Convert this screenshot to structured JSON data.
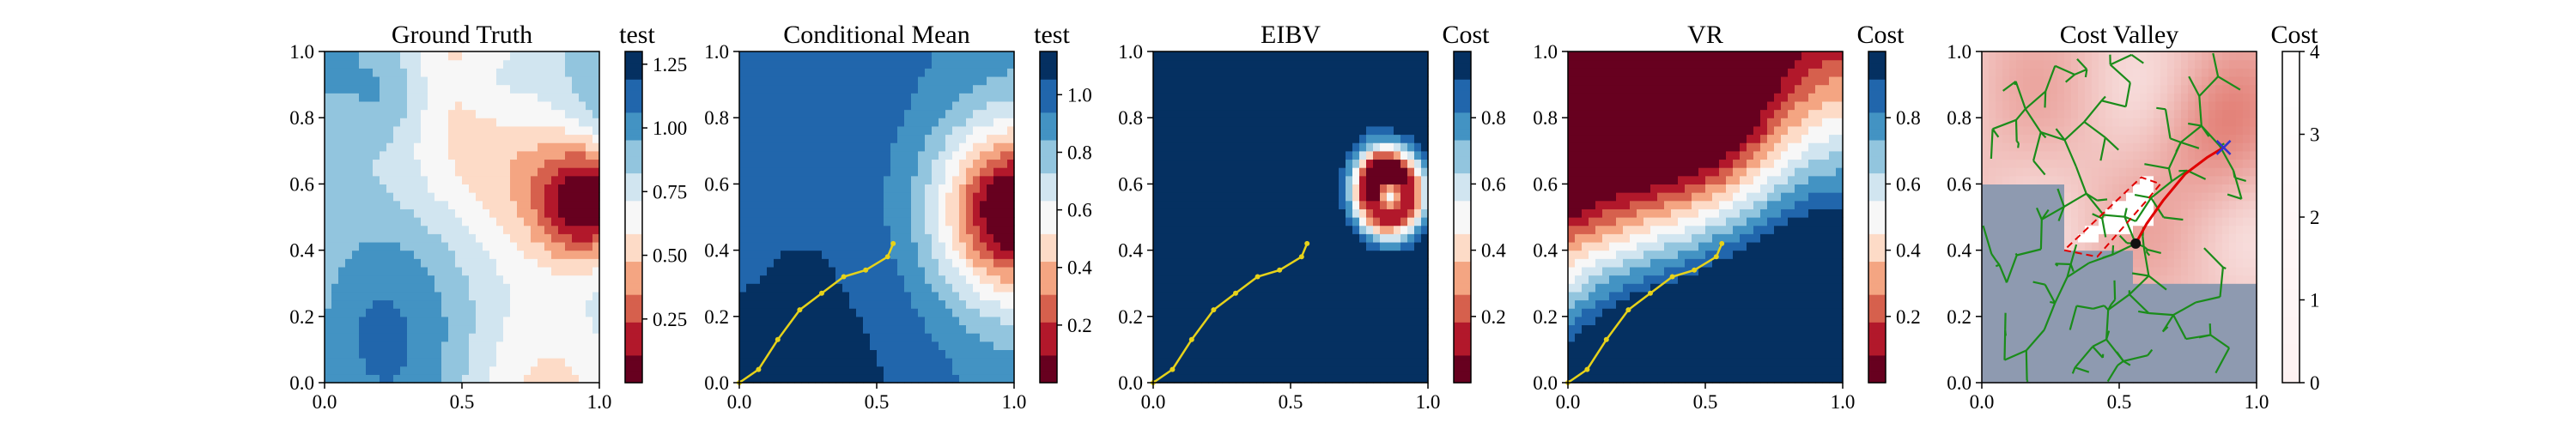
{
  "figure": {
    "panels": [
      {
        "title": "Ground Truth",
        "cbar_title": "test",
        "field": "truth",
        "path": false,
        "cmap": "RdBu",
        "cbar_ticks": [
          "0.25",
          "0.50",
          "0.75",
          "1.00",
          "1.25"
        ],
        "cbar_tick_values": [
          0.25,
          0.5,
          0.75,
          1.0,
          1.25
        ],
        "cbar_range": [
          0.0,
          1.3
        ]
      },
      {
        "title": "Conditional Mean",
        "cbar_title": "test",
        "field": "mean",
        "path": true,
        "cmap": "RdBu",
        "cbar_ticks": [
          "0.2",
          "0.4",
          "0.6",
          "0.8",
          "1.0"
        ],
        "cbar_tick_values": [
          0.2,
          0.4,
          0.6,
          0.8,
          1.0
        ],
        "cbar_range": [
          0.0,
          1.15
        ]
      },
      {
        "title": "EIBV",
        "cbar_title": "Cost",
        "field": "eibv",
        "path": true,
        "cmap": "RdBu",
        "cbar_ticks": [
          "0.2",
          "0.4",
          "0.6",
          "0.8"
        ],
        "cbar_tick_values": [
          0.2,
          0.4,
          0.6,
          0.8
        ],
        "cbar_range": [
          0.0,
          1.0
        ]
      },
      {
        "title": "VR",
        "cbar_title": "Cost",
        "field": "vr",
        "path": true,
        "cmap": "RdBu",
        "cbar_ticks": [
          "0.2",
          "0.4",
          "0.6",
          "0.8"
        ],
        "cbar_tick_values": [
          0.2,
          0.4,
          0.6,
          0.8
        ],
        "cbar_range": [
          0.0,
          1.0
        ]
      },
      {
        "title": "Cost Valley",
        "cbar_title": "Cost",
        "field": "valley",
        "path": false,
        "cmap": "Reds",
        "cbar_ticks": [
          "0",
          "1",
          "2",
          "3",
          "4"
        ],
        "cbar_tick_values": [
          0,
          1,
          2,
          3,
          4
        ],
        "cbar_range": [
          0,
          4
        ]
      }
    ],
    "x_ticks": [
      "0.0",
      "0.5",
      "1.0"
    ],
    "x_tick_values": [
      0.0,
      0.5,
      1.0
    ],
    "y_ticks": [
      "0.0",
      "0.2",
      "0.4",
      "0.6",
      "0.8",
      "1.0"
    ],
    "y_tick_values": [
      0.0,
      0.2,
      0.4,
      0.6,
      0.8,
      1.0
    ]
  },
  "colors": {
    "path_color": "#e6d21a",
    "tree_color": "#1a8c1a",
    "route_color": "#e00000",
    "target_color": "#3333cc",
    "rdbu": [
      "#67001f",
      "#b2182b",
      "#d6604d",
      "#f4a582",
      "#fddbc7",
      "#f7f7f7",
      "#d1e5f0",
      "#92c5de",
      "#4393c3",
      "#2166ac",
      "#053061"
    ]
  },
  "chart_data": [
    {
      "type": "heatmap",
      "title": "Ground Truth",
      "colorbar_label": "test",
      "xlim": [
        0,
        1
      ],
      "ylim": [
        0,
        1
      ],
      "colorbar_range": [
        0.0,
        1.3
      ],
      "features": "Mostly high values (~0.75–1.25); low-value hotspot near (0.95, 0.55)"
    },
    {
      "type": "heatmap",
      "title": "Conditional Mean",
      "colorbar_label": "test",
      "xlim": [
        0,
        1
      ],
      "ylim": [
        0,
        1
      ],
      "colorbar_range": [
        0.0,
        1.15
      ],
      "features": "Smooth high field with a low hotspot near (0.98, 0.52)",
      "path": {
        "x": [
          0.0,
          0.07,
          0.14,
          0.22,
          0.3,
          0.38,
          0.46,
          0.54,
          0.56
        ],
        "y": [
          0.0,
          0.04,
          0.13,
          0.22,
          0.27,
          0.32,
          0.34,
          0.38,
          0.42
        ]
      }
    },
    {
      "type": "heatmap",
      "title": "EIBV",
      "colorbar_label": "Cost",
      "xlim": [
        0,
        1
      ],
      "ylim": [
        0,
        1
      ],
      "colorbar_range": [
        0.0,
        1.0
      ],
      "features": "High everywhere except a ring of lower cost around (0.8, 0.6)",
      "path": {
        "x": [
          0.0,
          0.07,
          0.14,
          0.22,
          0.3,
          0.38,
          0.46,
          0.54,
          0.56
        ],
        "y": [
          0.0,
          0.04,
          0.13,
          0.22,
          0.27,
          0.32,
          0.34,
          0.38,
          0.42
        ]
      }
    },
    {
      "type": "heatmap",
      "title": "VR",
      "colorbar_label": "Cost",
      "xlim": [
        0,
        1
      ],
      "ylim": [
        0,
        1
      ],
      "colorbar_range": [
        0.0,
        1.0
      ],
      "features": "Low cost band along the top, S-shaped transition, high cost at bottom-left",
      "path": {
        "x": [
          0.0,
          0.07,
          0.14,
          0.22,
          0.3,
          0.38,
          0.46,
          0.54,
          0.56
        ],
        "y": [
          0.0,
          0.04,
          0.13,
          0.22,
          0.27,
          0.32,
          0.34,
          0.38,
          0.42
        ]
      }
    },
    {
      "type": "heatmap",
      "title": "Cost Valley",
      "colorbar_label": "Cost",
      "xlim": [
        0,
        1
      ],
      "ylim": [
        0,
        1
      ],
      "colorbar_range": [
        0,
        4
      ],
      "features": "Pink cost field with a gray obstacle region at lower-left, green RRT tree, red planned route, dashed red budget polygon, white low-cost triangle, blue target cross near (0.88, 0.71), current position near (0.56, 0.42)",
      "route": {
        "x": [
          0.56,
          0.6,
          0.66,
          0.74,
          0.82,
          0.88
        ],
        "y": [
          0.42,
          0.48,
          0.55,
          0.63,
          0.68,
          0.71
        ]
      },
      "target": {
        "x": 0.88,
        "y": 0.71
      },
      "current": {
        "x": 0.56,
        "y": 0.42
      },
      "budget_polygon": {
        "x": [
          0.3,
          0.42,
          0.6,
          0.65,
          0.58,
          0.3
        ],
        "y": [
          0.4,
          0.38,
          0.55,
          0.6,
          0.62,
          0.4
        ]
      },
      "low_cost_triangle": {
        "x": [
          0.32,
          0.58,
          0.6,
          0.32
        ],
        "y": [
          0.42,
          0.6,
          0.52,
          0.42
        ]
      }
    }
  ]
}
